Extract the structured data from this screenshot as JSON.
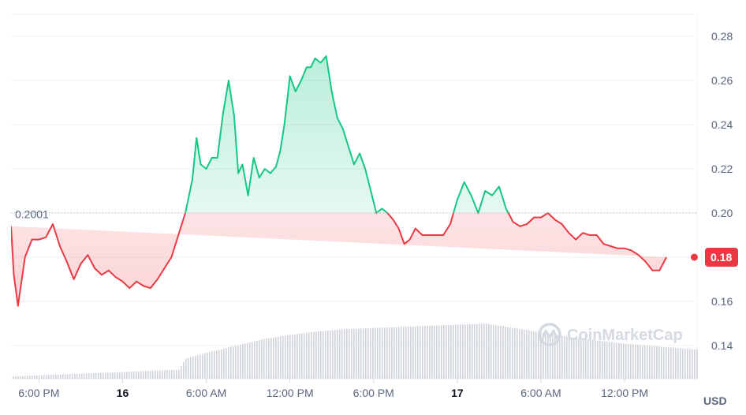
{
  "chart_data": {
    "type": "area",
    "title": "",
    "xlabel": "",
    "ylabel": "",
    "unit": "USD",
    "ylim": [
      0.125,
      0.29
    ],
    "y_ticks": [
      "0.14",
      "0.16",
      "0.18",
      "0.20",
      "0.22",
      "0.24",
      "0.26",
      "0.28"
    ],
    "x_ticks": [
      {
        "label": "6:00 PM",
        "t": 2,
        "bold": false
      },
      {
        "label": "16",
        "t": 8,
        "bold": true
      },
      {
        "label": "6:00 AM",
        "t": 14,
        "bold": false
      },
      {
        "label": "12:00 PM",
        "t": 20,
        "bold": false
      },
      {
        "label": "6:00 PM",
        "t": 26,
        "bold": false
      },
      {
        "label": "17",
        "t": 32,
        "bold": true
      },
      {
        "label": "6:00 AM",
        "t": 38,
        "bold": false
      },
      {
        "label": "12:00 PM",
        "t": 44,
        "bold": false
      }
    ],
    "x_range_hours": [
      0,
      49.2
    ],
    "reference_value": 0.2001,
    "reference_label": "0.2001",
    "last_price_label": "0.18",
    "grid": true,
    "colors": {
      "up": "#16c784",
      "down": "#ea3943",
      "volume": "#cfd3da",
      "grid": "#eff2f5"
    },
    "price_series": {
      "name": "price",
      "t": [
        0,
        0.2,
        0.5,
        1,
        1.5,
        2,
        2.5,
        3,
        3.5,
        4,
        4.5,
        5,
        5.5,
        6,
        6.5,
        7,
        7.5,
        8,
        8.5,
        9,
        9.5,
        10,
        10.5,
        11,
        11.5,
        12,
        12.5,
        13,
        13.3,
        13.6,
        14,
        14.4,
        14.8,
        15.2,
        15.6,
        16,
        16.3,
        16.6,
        17,
        17.4,
        17.8,
        18.2,
        18.6,
        19,
        19.3,
        19.6,
        20,
        20.4,
        20.8,
        21.2,
        21.5,
        21.8,
        22.2,
        22.6,
        23,
        23.4,
        23.8,
        24.2,
        24.6,
        25,
        25.4,
        25.8,
        26.2,
        26.6,
        27,
        27.4,
        27.8,
        28.2,
        28.6,
        29,
        29.5,
        30,
        30.5,
        31,
        31.5,
        32,
        32.5,
        33,
        33.5,
        34,
        34.5,
        35,
        35.5,
        36,
        36.5,
        37,
        37.5,
        38,
        38.5,
        39,
        39.5,
        40,
        40.5,
        41,
        41.5,
        42,
        42.5,
        43,
        43.5,
        44,
        44.5,
        45,
        45.5,
        46,
        46.5,
        47,
        47.5,
        48,
        48.5,
        49
      ],
      "price": [
        0.194,
        0.172,
        0.158,
        0.18,
        0.188,
        0.188,
        0.189,
        0.195,
        0.185,
        0.178,
        0.17,
        0.177,
        0.181,
        0.175,
        0.172,
        0.174,
        0.171,
        0.169,
        0.166,
        0.169,
        0.167,
        0.166,
        0.17,
        0.175,
        0.18,
        0.19,
        0.2,
        0.215,
        0.234,
        0.222,
        0.22,
        0.225,
        0.225,
        0.245,
        0.26,
        0.244,
        0.218,
        0.222,
        0.208,
        0.225,
        0.216,
        0.22,
        0.218,
        0.221,
        0.228,
        0.24,
        0.262,
        0.255,
        0.26,
        0.266,
        0.266,
        0.27,
        0.268,
        0.271,
        0.255,
        0.243,
        0.238,
        0.23,
        0.222,
        0.227,
        0.22,
        0.21,
        0.2,
        0.202,
        0.2,
        0.197,
        0.193,
        0.186,
        0.188,
        0.193,
        0.19,
        0.19,
        0.19,
        0.19,
        0.195,
        0.206,
        0.214,
        0.208,
        0.2,
        0.21,
        0.208,
        0.212,
        0.202,
        0.196,
        0.194,
        0.195,
        0.198,
        0.198,
        0.2,
        0.197,
        0.195,
        0.191,
        0.188,
        0.191,
        0.19,
        0.19,
        0.186,
        0.185,
        0.184,
        0.184,
        0.183,
        0.181,
        0.178,
        0.174,
        0.174,
        0.18
      ],
      "last_price": 0.18
    },
    "volume_series": {
      "name": "volume",
      "t": [
        0,
        6,
        12,
        12.5,
        14,
        16,
        18,
        20,
        22,
        24,
        26,
        28,
        30,
        32,
        34,
        36,
        38,
        40,
        42,
        44,
        46,
        48,
        49
      ],
      "value": [
        2,
        5,
        8,
        18,
        23,
        29,
        35,
        39,
        42,
        44,
        45,
        46,
        47,
        48,
        49,
        45,
        41,
        37,
        34,
        31,
        29,
        27,
        26
      ]
    }
  },
  "watermark": {
    "text": "CoinMarketCap",
    "icon": "coinmarketcap-logo-icon"
  }
}
